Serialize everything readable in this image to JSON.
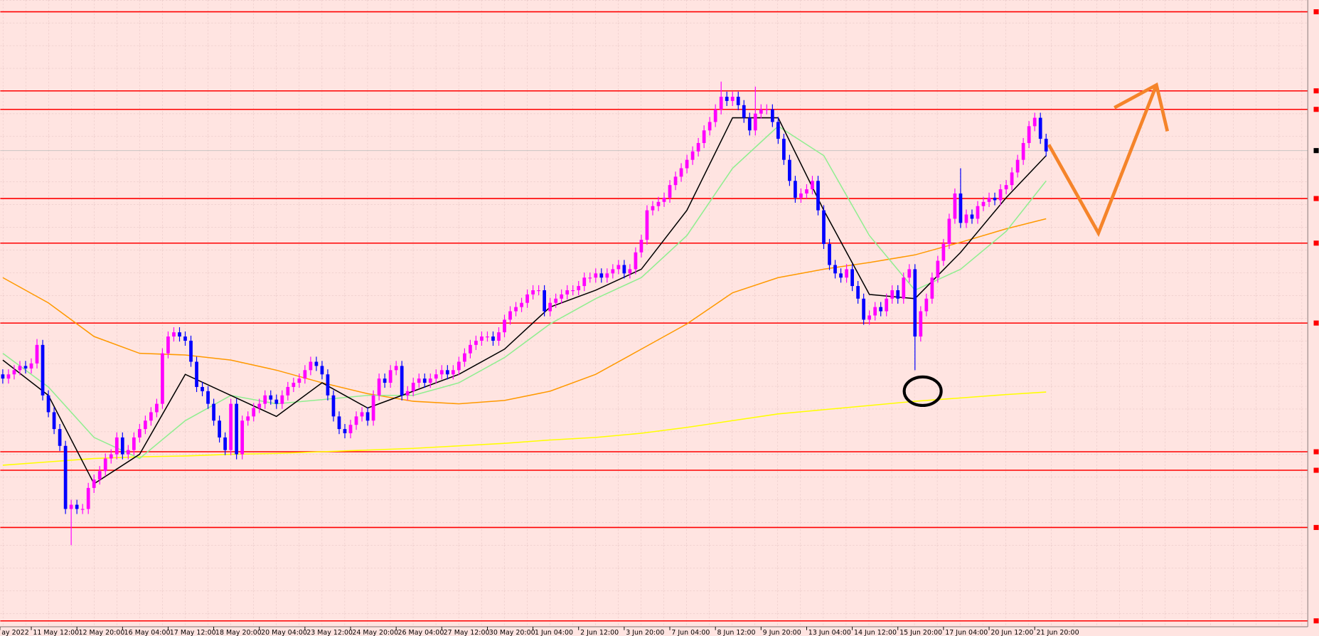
{
  "chart_data": {
    "type": "candlestick",
    "up_color": "#ff00ff",
    "down_color": "#0000ff",
    "grid": true,
    "xlim": [
      -0.44,
      228.9
    ],
    "ylim": [
      0,
      745
    ],
    "xticks": [
      {
        "value": -0.5,
        "label": "ay 2022"
      },
      {
        "value": 5,
        "label": "11 May 12:00"
      },
      {
        "value": 13,
        "label": "12 May 20:00"
      },
      {
        "value": 21,
        "label": "16 May 04:00"
      },
      {
        "value": 29,
        "label": "17 May 12:00"
      },
      {
        "value": 37,
        "label": "18 May 20:00"
      },
      {
        "value": 45,
        "label": "20 May 04:00"
      },
      {
        "value": 53,
        "label": "23 May 12:00"
      },
      {
        "value": 61,
        "label": "24 May 20:00"
      },
      {
        "value": 69,
        "label": "26 May 04:00"
      },
      {
        "value": 77,
        "label": "27 May 12:00"
      },
      {
        "value": 85,
        "label": "30 May 20:00"
      },
      {
        "value": 93,
        "label": "1 Jun 04:00"
      },
      {
        "value": 101,
        "label": "2 Jun 12:00"
      },
      {
        "value": 109,
        "label": "3 Jun 20:00"
      },
      {
        "value": 117,
        "label": "7 Jun 04:00"
      },
      {
        "value": 125,
        "label": "8 Jun 12:00"
      },
      {
        "value": 133,
        "label": "9 Jun 20:00"
      },
      {
        "value": 141,
        "label": "13 Jun 04:00"
      },
      {
        "value": 149,
        "label": "14 Jun 12:00"
      },
      {
        "value": 157,
        "label": "15 Jun 20:00"
      },
      {
        "value": 165,
        "label": "17 Jun 04:00"
      },
      {
        "value": 173,
        "label": "20 Jun 12:00"
      },
      {
        "value": 181,
        "label": "21 Jun 20:00"
      }
    ],
    "open": [
      300,
      295,
      300,
      305,
      310,
      307,
      313,
      335,
      275,
      255,
      235,
      215,
      140,
      145,
      140,
      140,
      165,
      175,
      185,
      200,
      205,
      225,
      205,
      210,
      225,
      235,
      245,
      255,
      265,
      325,
      345,
      350,
      345,
      340,
      315,
      285,
      280,
      265,
      245,
      225,
      210,
      265,
      205,
      245,
      250,
      260,
      265,
      275,
      270,
      265,
      275,
      285,
      290,
      295,
      305,
      315,
      310,
      300,
      275,
      250,
      235,
      230,
      240,
      250,
      255,
      245,
      275,
      295,
      290,
      305,
      310,
      275,
      280,
      290,
      295,
      290,
      295,
      300,
      305,
      300,
      305,
      315,
      325,
      335,
      340,
      345,
      345,
      340,
      350,
      365,
      375,
      380,
      385,
      395,
      400,
      400,
      375,
      385,
      390,
      395,
      400,
      400,
      405,
      415,
      415,
      420,
      415,
      420,
      425,
      430,
      420,
      425,
      445,
      460,
      495,
      500,
      505,
      510,
      525,
      535,
      545,
      555,
      565,
      575,
      590,
      600,
      615,
      630,
      625,
      630,
      620,
      605,
      590,
      610,
      615,
      615,
      600,
      580,
      555,
      530,
      510,
      515,
      520,
      530,
      495,
      455,
      430,
      420,
      415,
      425,
      405,
      390,
      365,
      370,
      380,
      375,
      390,
      400,
      390,
      415,
      425,
      345,
      375,
      390,
      415,
      435,
      455,
      485,
      515,
      480,
      490,
      485,
      500,
      505,
      510,
      507,
      520,
      525,
      540,
      555,
      575,
      595,
      605,
      580
    ],
    "high": [
      306,
      306,
      311,
      316,
      316,
      319,
      342,
      341,
      281,
      261,
      241,
      221,
      151,
      151,
      146,
      171,
      181,
      191,
      206,
      211,
      231,
      231,
      216,
      231,
      241,
      251,
      261,
      271,
      331,
      351,
      356,
      356,
      351,
      346,
      321,
      291,
      286,
      271,
      251,
      231,
      271,
      271,
      251,
      256,
      266,
      271,
      281,
      281,
      276,
      281,
      291,
      296,
      301,
      311,
      321,
      321,
      316,
      306,
      281,
      256,
      241,
      246,
      256,
      261,
      261,
      281,
      301,
      301,
      311,
      316,
      316,
      286,
      296,
      301,
      301,
      301,
      306,
      311,
      311,
      311,
      321,
      331,
      341,
      346,
      351,
      351,
      351,
      356,
      371,
      381,
      386,
      391,
      401,
      406,
      406,
      406,
      391,
      396,
      401,
      406,
      406,
      411,
      421,
      421,
      426,
      426,
      426,
      431,
      436,
      436,
      431,
      451,
      466,
      501,
      506,
      511,
      516,
      531,
      541,
      551,
      561,
      571,
      581,
      596,
      606,
      621,
      648,
      636,
      636,
      636,
      626,
      611,
      642,
      621,
      621,
      621,
      606,
      586,
      561,
      536,
      521,
      526,
      536,
      536,
      501,
      461,
      436,
      426,
      431,
      431,
      411,
      396,
      376,
      386,
      386,
      396,
      406,
      406,
      421,
      431,
      431,
      381,
      396,
      421,
      441,
      461,
      491,
      521,
      545,
      496,
      496,
      506,
      511,
      516,
      516,
      526,
      531,
      546,
      561,
      581,
      601,
      611,
      611,
      586
    ],
    "low": [
      289,
      289,
      294,
      299,
      301,
      301,
      307,
      269,
      249,
      229,
      209,
      134,
      97,
      134,
      134,
      134,
      159,
      169,
      179,
      194,
      199,
      199,
      199,
      204,
      219,
      229,
      239,
      249,
      259,
      319,
      339,
      339,
      334,
      309,
      279,
      274,
      259,
      239,
      219,
      204,
      204,
      199,
      199,
      239,
      244,
      254,
      259,
      264,
      259,
      259,
      269,
      279,
      284,
      289,
      299,
      304,
      294,
      269,
      244,
      229,
      224,
      224,
      234,
      244,
      239,
      239,
      269,
      284,
      284,
      299,
      269,
      269,
      274,
      284,
      284,
      284,
      289,
      294,
      294,
      294,
      299,
      309,
      319,
      329,
      334,
      339,
      334,
      334,
      344,
      359,
      369,
      374,
      379,
      389,
      394,
      369,
      369,
      379,
      384,
      389,
      394,
      394,
      399,
      409,
      409,
      409,
      409,
      414,
      419,
      414,
      414,
      419,
      439,
      454,
      489,
      494,
      499,
      504,
      519,
      529,
      539,
      549,
      559,
      569,
      584,
      594,
      609,
      619,
      619,
      614,
      599,
      584,
      584,
      604,
      609,
      594,
      574,
      549,
      524,
      504,
      504,
      509,
      514,
      489,
      449,
      424,
      414,
      409,
      409,
      399,
      384,
      359,
      359,
      364,
      369,
      369,
      384,
      384,
      384,
      409,
      305,
      339,
      369,
      384,
      409,
      429,
      449,
      479,
      474,
      474,
      479,
      479,
      494,
      499,
      501,
      501,
      514,
      519,
      534,
      549,
      569,
      589,
      574,
      559
    ],
    "close": [
      295,
      300,
      305,
      310,
      307,
      313,
      335,
      275,
      255,
      235,
      215,
      140,
      145,
      140,
      140,
      165,
      175,
      185,
      200,
      205,
      225,
      205,
      210,
      225,
      235,
      245,
      255,
      265,
      325,
      345,
      350,
      345,
      340,
      315,
      285,
      280,
      265,
      245,
      225,
      210,
      265,
      205,
      245,
      250,
      260,
      265,
      275,
      270,
      265,
      275,
      285,
      290,
      295,
      305,
      315,
      310,
      300,
      275,
      250,
      235,
      230,
      240,
      250,
      255,
      245,
      275,
      295,
      290,
      305,
      310,
      275,
      280,
      290,
      295,
      290,
      295,
      300,
      305,
      300,
      305,
      315,
      325,
      335,
      340,
      345,
      345,
      340,
      350,
      365,
      375,
      380,
      385,
      395,
      400,
      400,
      375,
      385,
      390,
      395,
      400,
      400,
      405,
      415,
      415,
      420,
      415,
      420,
      425,
      430,
      420,
      425,
      445,
      460,
      495,
      500,
      505,
      510,
      525,
      535,
      545,
      555,
      565,
      575,
      590,
      600,
      615,
      630,
      625,
      630,
      620,
      605,
      590,
      610,
      615,
      615,
      600,
      580,
      555,
      530,
      510,
      515,
      520,
      530,
      495,
      455,
      430,
      420,
      415,
      425,
      405,
      390,
      365,
      370,
      380,
      375,
      390,
      400,
      390,
      415,
      425,
      345,
      375,
      390,
      415,
      435,
      455,
      485,
      515,
      480,
      490,
      485,
      500,
      505,
      510,
      507,
      520,
      525,
      540,
      555,
      575,
      595,
      605,
      580,
      565
    ],
    "series": [
      {
        "color": "#ffff00",
        "x": [
          0,
          8,
          16,
          24,
          32,
          40,
          48,
          56,
          64,
          72,
          80,
          88,
          96,
          104,
          112,
          120,
          128,
          136,
          144,
          152,
          160,
          168,
          176,
          183
        ],
        "values": [
          192,
          196,
          200,
          202,
          203,
          205,
          206,
          208,
          210,
          212,
          215,
          218,
          222,
          225,
          230,
          237,
          245,
          253,
          258,
          263,
          268,
          272,
          276,
          279
        ]
      },
      {
        "color": "#ff9900",
        "x": [
          0,
          8,
          16,
          24,
          32,
          40,
          48,
          56,
          64,
          72,
          80,
          88,
          96,
          104,
          112,
          120,
          128,
          136,
          144,
          152,
          160,
          168,
          176,
          183
        ],
        "values": [
          415,
          385,
          345,
          325,
          323,
          317,
          305,
          290,
          277,
          268,
          265,
          269,
          280,
          300,
          330,
          360,
          397,
          415,
          425,
          433,
          442,
          457,
          473,
          485
        ]
      },
      {
        "color": "#90ee90",
        "x": [
          0,
          8,
          16,
          24,
          32,
          40,
          48,
          56,
          64,
          72,
          80,
          88,
          96,
          104,
          112,
          120,
          128,
          136,
          144,
          152,
          160,
          168,
          176,
          183
        ],
        "values": [
          325,
          285,
          225,
          200,
          245,
          275,
          265,
          270,
          275,
          275,
          290,
          320,
          360,
          390,
          415,
          465,
          545,
          595,
          560,
          465,
          400,
          425,
          470,
          530
        ]
      },
      {
        "color": "#000000",
        "x": [
          0,
          8,
          16,
          24,
          32,
          40,
          48,
          56,
          64,
          72,
          80,
          88,
          96,
          104,
          112,
          120,
          128,
          136,
          144,
          152,
          160,
          168,
          176,
          183
        ],
        "values": [
          317,
          275,
          170,
          205,
          300,
          275,
          250,
          290,
          260,
          280,
          300,
          330,
          380,
          400,
          425,
          495,
          605,
          605,
          495,
          395,
          390,
          445,
          510,
          560
        ]
      }
    ],
    "levels": {
      "color": "#ff0000",
      "values": [
        731,
        637,
        615,
        509,
        456,
        361,
        208,
        186,
        118,
        7
      ]
    },
    "current_price": {
      "color": "#c0c0c0",
      "value": 566
    }
  }
}
